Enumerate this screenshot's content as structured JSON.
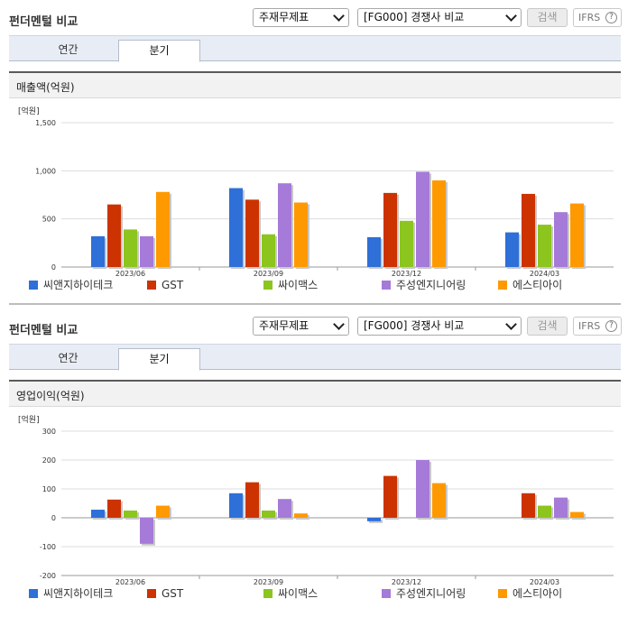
{
  "panels": [
    {
      "title": "펀더멘털 비교",
      "select_a": "주재무제표",
      "select_b": "[FG000] 경쟁사 비교",
      "search_label": "검색",
      "ifrs_label": "IFRS",
      "help_glyph": "?",
      "tabs": [
        "연간",
        "분기"
      ],
      "chart_header": "매출액(억원)"
    },
    {
      "title": "펀더멘털 비교",
      "select_a": "주재무제표",
      "select_b": "[FG000] 경쟁사 비교",
      "search_label": "검색",
      "ifrs_label": "IFRS",
      "help_glyph": "?",
      "tabs": [
        "연간",
        "분기"
      ],
      "chart_header": "영업이익(억원)"
    }
  ],
  "chart_data": [
    {
      "type": "bar",
      "unit_label": "[억원]",
      "categories": [
        "2023/06",
        "2023/09",
        "2023/12",
        "2024/03"
      ],
      "ylim": [
        0,
        1500
      ],
      "yticks": [
        0,
        500,
        1000,
        1500
      ],
      "ytick_labels": [
        "0",
        "500",
        "1,000",
        "1,500"
      ],
      "legend_position": "bottom",
      "series": [
        {
          "name": "씨앤지하이테크",
          "color": "#2e6fd8",
          "values": [
            320,
            820,
            310,
            360
          ]
        },
        {
          "name": "GST",
          "color": "#cc3300",
          "values": [
            650,
            700,
            770,
            760
          ]
        },
        {
          "name": "싸이맥스",
          "color": "#8cc51e",
          "values": [
            390,
            340,
            480,
            440
          ]
        },
        {
          "name": "주성엔지니어링",
          "color": "#a57ad8",
          "values": [
            320,
            870,
            990,
            570
          ]
        },
        {
          "name": "에스티아이",
          "color": "#ff9900",
          "values": [
            780,
            670,
            900,
            660
          ]
        }
      ]
    },
    {
      "type": "bar",
      "unit_label": "[억원]",
      "categories": [
        "2023/06",
        "2023/09",
        "2023/12",
        "2024/03"
      ],
      "ylim": [
        -200,
        300
      ],
      "yticks": [
        -200,
        -100,
        0,
        100,
        200,
        300
      ],
      "ytick_labels": [
        "-200",
        "-100",
        "0",
        "100",
        "200",
        "300"
      ],
      "legend_position": "bottom",
      "series": [
        {
          "name": "씨앤지하이테크",
          "color": "#2e6fd8",
          "values": [
            28,
            85,
            -12,
            null
          ]
        },
        {
          "name": "GST",
          "color": "#cc3300",
          "values": [
            63,
            123,
            145,
            85
          ]
        },
        {
          "name": "싸이맥스",
          "color": "#8cc51e",
          "values": [
            25,
            25,
            null,
            42
          ]
        },
        {
          "name": "주성엔지니어링",
          "color": "#a57ad8",
          "values": [
            -90,
            65,
            200,
            70
          ]
        },
        {
          "name": "에스티아이",
          "color": "#ff9900",
          "values": [
            42,
            15,
            120,
            20
          ]
        }
      ]
    }
  ]
}
